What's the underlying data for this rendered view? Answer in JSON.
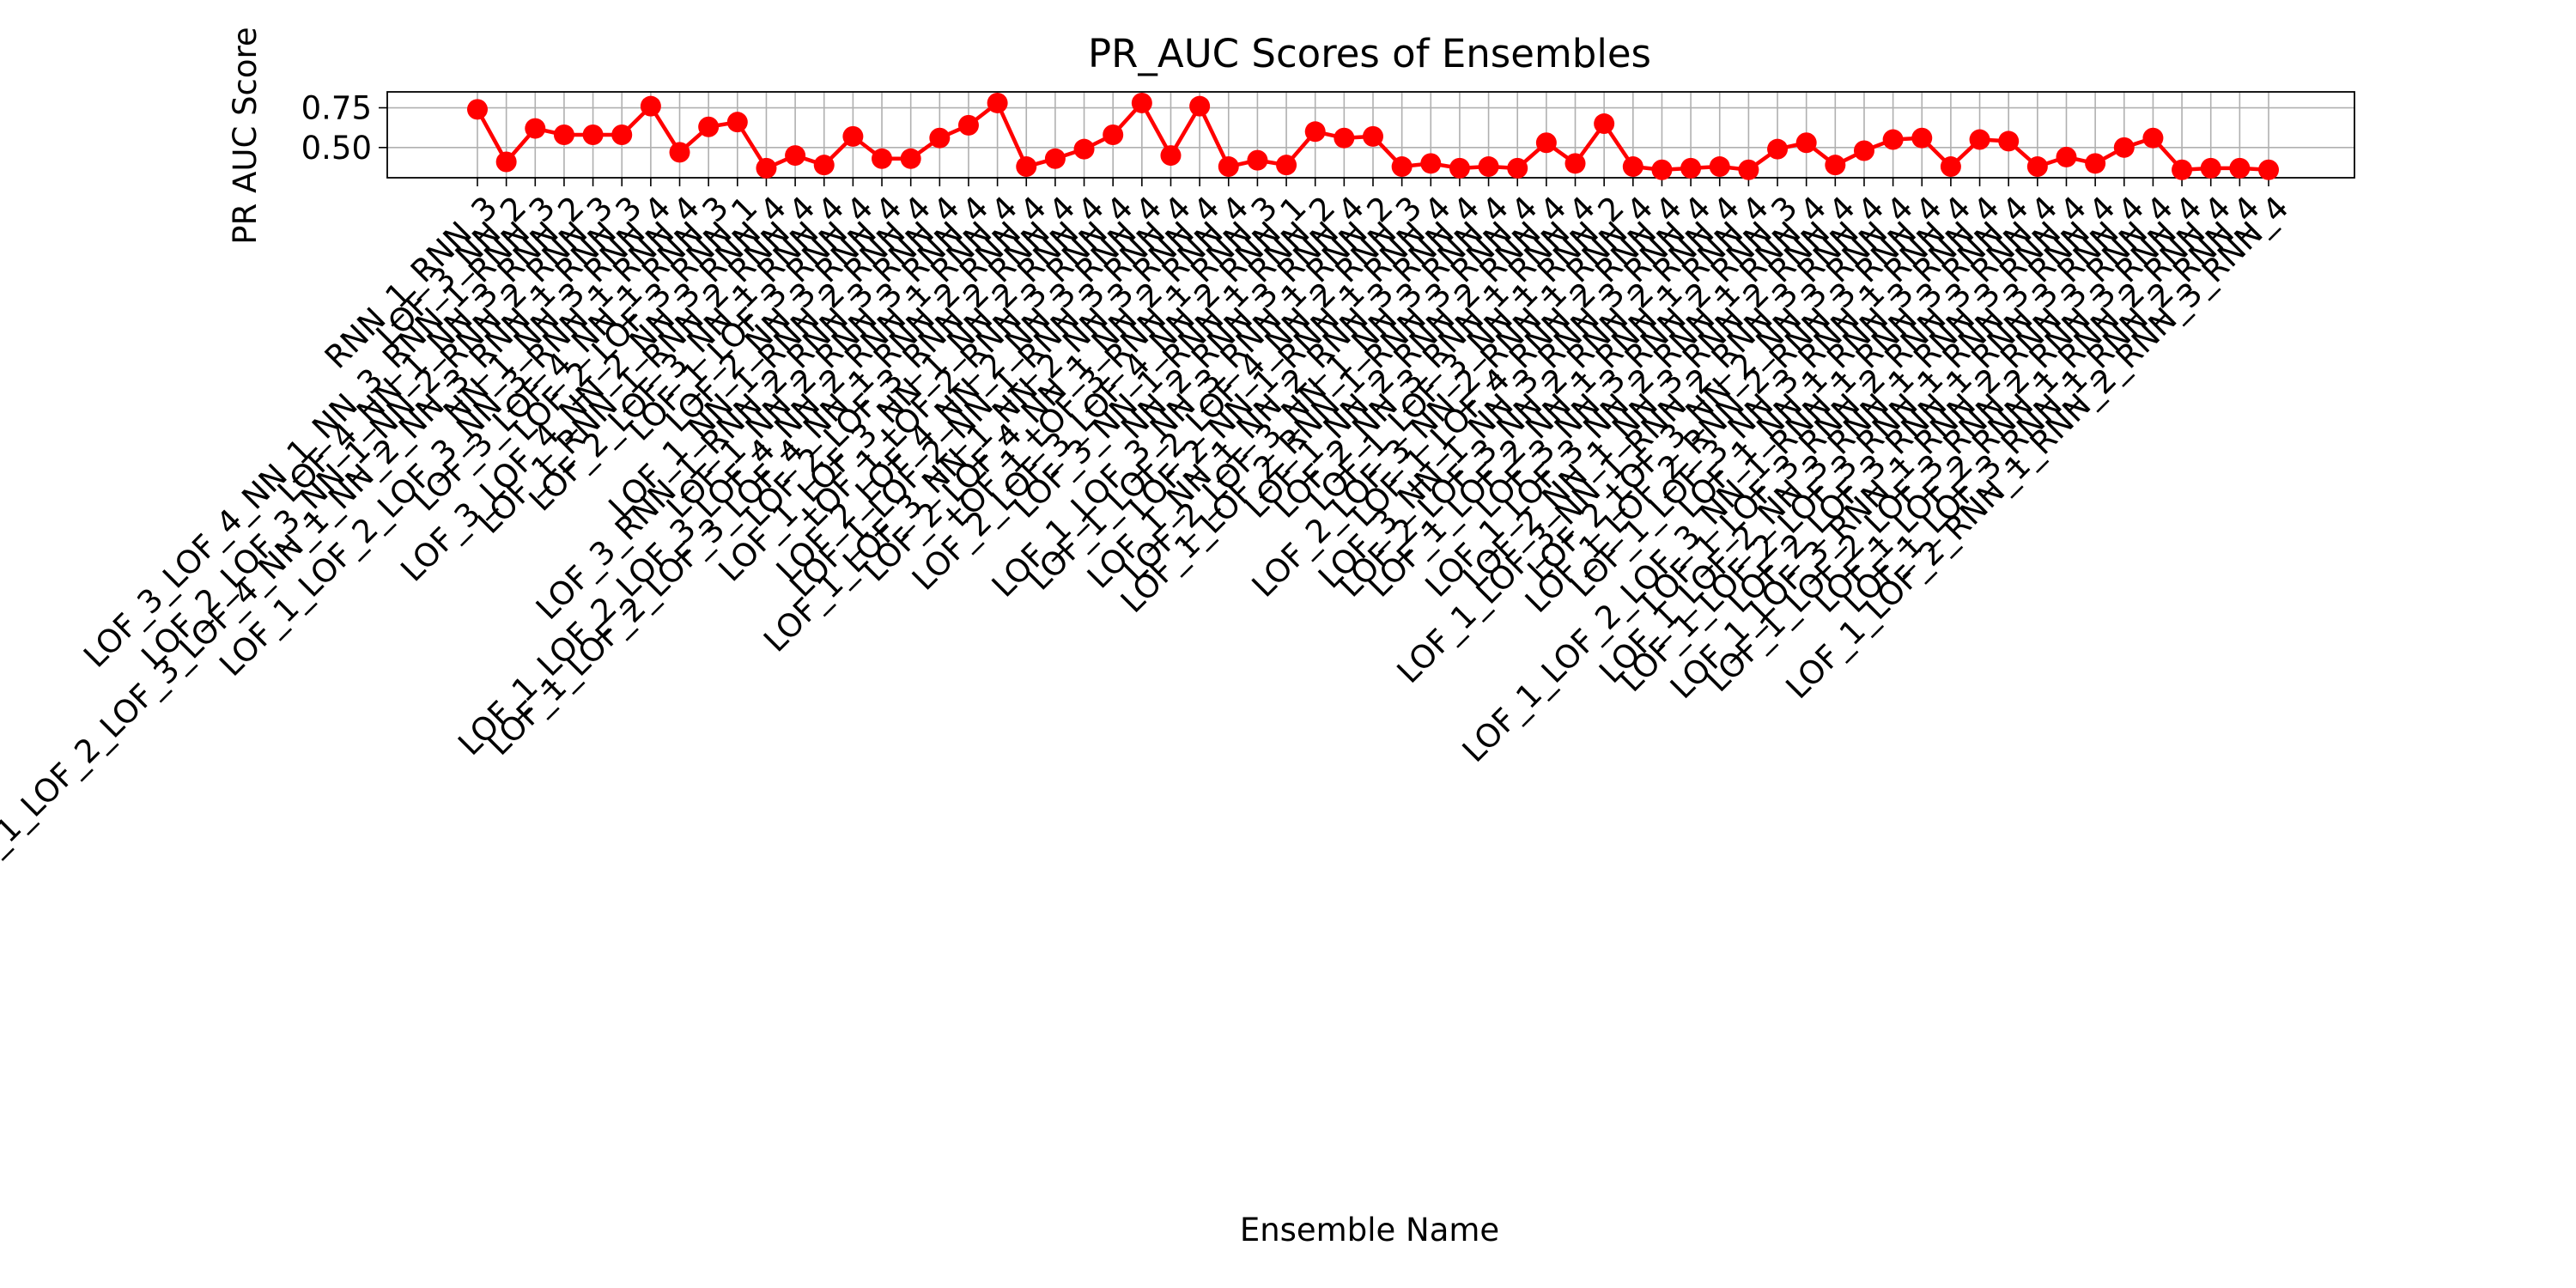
{
  "chart_data": {
    "type": "line",
    "title": "PR_AUC Scores of Ensembles",
    "xlabel": "Ensemble Name",
    "ylabel": "PR AUC Score",
    "ylim": [
      0.31,
      0.85
    ],
    "yticks": [
      0.5,
      0.75
    ],
    "ytick_labels": [
      "0.50",
      "0.75"
    ],
    "grid": true,
    "series_color": "#ff0000",
    "categories": [
      "RNN_1_RNN_3",
      "LOF_3_NN_2",
      "LOF_3_LOF_4_NN_1_NN_3_RNN_1_RNN_3",
      "LOF_4_NN_1_NN_3_RNN_2",
      "LOF_2_LOF_3_NN_1_NN_2_RNN_2_RNN_3",
      "LOF_1_LOF_2_LOF_3_LOF_4_NN_1_NN_2_NN_3_RNN_1_RNN_3",
      "NN_1_NN_3_RNN_4",
      "LOF_1_LOF_2_LOF_3_NN_3_RNN_1_RNN_4",
      "LOF_3_LOF_4_NN_1_RNN_3",
      "LOF_2_LOF_3_RNN_1",
      "LOF_3_LOF_4_NN_2_NN_3_RNN_4",
      "LOF_1_RNN_1_RNN_2_RNN_4",
      "LOF_2_LOF_3_NN_1_RNN_4",
      "LOF_1_LOF_3_RNN_4",
      "LOF_2_NN_3_RNN_4",
      "LOF_1_NN_1_RNN_2_RNN_4",
      "LOF_3_RNN_1_RNN_2_RNN_3_RNN_4",
      "LOF_1_NN_2_RNN_3_RNN_4",
      "LOF_1_LOF_2_LOF_3_LOF_4_NN_2_RNN_1_RNN_4",
      "LOF_1_LOF_2_LOF_3_LOF_4_NN_1_RNN_2_RNN_4",
      "LOF_2_LOF_3_RNN_2_RNN_4",
      "LOF_1_LOF_3_NN_1_NN_2_RNN_4",
      "LOF_1_LOF_2_RNN_3_RNN_4",
      "LOF_2_LOF_4_NN_2_NN_3_RNN_4",
      "LOF_1_LOF_2_NN_1_RNN_3_RNN_4",
      "LOF_1_LOF_3_NN_1_NN_2_NN_3_RNN_4",
      "LOF_2_LOF_4_NN_1_NN_2_RNN_4",
      "LOF_1_LOF_3_RNN_1_RNN_3",
      "LOF_2_LOF_3_LOF_4_NN_2_RNN_1",
      "LOF_3_NN_1_RNN_1_RNN_2",
      "NN_2_RNN_3_RNN_4",
      "LOF_1_LOF_3_NN_3_RNN_1_RNN_2",
      "LOF_1_LOF_2_LOF_4_NN_2_RNN_3",
      "LOF_2_NN_1_RNN_1_RNN_4",
      "LOF_1_NN_1_NN_2_RNN_3_RNN_4",
      "LOF_2_LOF_3_NN_1_NN_3_RNN_4",
      "LOF_1_LOF_2_RNN_1_RNN_3_RNN_4",
      "LOF_1_NN_2_RNN_2_RNN_4",
      "LOF_2_NN_3_RNN_1_RNN_4",
      "LOF_1_LOF_3_NN_1_RNN_2",
      "LOF_2_LOF_3_NN_2_RNN_1_RNN_4",
      "LOF_1_LOF_4_RNN_2_RNN_4",
      "LOF_3_NN_1_NN_3_RNN_3_RNN_4",
      "LOF_2_LOF_3_NN_2_RNN_2_RNN_4",
      "LOF_1_LOF_2_NN_1_RNN_1_RNN_4",
      "LOF_3_NN_3_RNN_2_RNN_3",
      "LOF_1_LOF_3_NN_2_RNN_1_RNN_4",
      "LOF_2_NN_1_NN_3_RNN_2_RNN_4",
      "LOF_1_LOF_3_NN_1_RNN_2_RNN_3_RNN_4",
      "LOF_2_LOF_3_NN_2_NN_3_RNN_4",
      "LOF_1_LOF_2_RNN_2_RNN_3_RNN_4",
      "LOF_1_LOF_3_NN_3_RNN_1_RNN_4",
      "LOF_1_NN_1_RNN_3_RNN_4",
      "LOF_1_LOF_2_LOF_3_NN_1_RNN_1_RNN_3_RNN_4",
      "LOF_1_LOF_3_RNN_2_RNN_3_RNN_4",
      "LOF_1_LOF_2_NN_3_RNN_1_RNN_3_RNN_4",
      "LOF_1_LOF_2_LOF_3_RNN_1_RNN_3_RNN_4",
      "LOF_2_LOF_3_RNN_1_RNN_3_RNN_4",
      "LOF_1_LOF_3_RNN_1_RNN_2_RNN_3_RNN_4",
      "LOF_1_LOF_2_LOF_3_RNN_2_RNN_3_RNN_4",
      "LOF_1_LOF_2_RNN_1_RNN_2_RNN_4",
      "LOF_1_LOF_3_RNN_1_RNN_2_RNN_4",
      "LOF_1_LOF_2_RNN_1_RNN_2_RNN_3_RNN_4"
    ],
    "series": [
      {
        "values": [
          0.74,
          0.41,
          0.62,
          0.58,
          0.58,
          0.58,
          0.76,
          0.47,
          0.63,
          0.66,
          0.37,
          0.45,
          0.39,
          0.57,
          0.43,
          0.43,
          0.56,
          0.64,
          0.78,
          0.38,
          0.43,
          0.49,
          0.58,
          0.78,
          0.45,
          0.76,
          0.38,
          0.42,
          0.39,
          0.6,
          0.56,
          0.57,
          0.38,
          0.4,
          0.37,
          0.38,
          0.37,
          0.53,
          0.4,
          0.65,
          0.38,
          0.36,
          0.37,
          0.38,
          0.36,
          0.49,
          0.53,
          0.39,
          0.48,
          0.55,
          0.56,
          0.38,
          0.55,
          0.54,
          0.38,
          0.44,
          0.4,
          0.5,
          0.56,
          0.36,
          0.37,
          0.37,
          0.36
        ]
      }
    ]
  }
}
